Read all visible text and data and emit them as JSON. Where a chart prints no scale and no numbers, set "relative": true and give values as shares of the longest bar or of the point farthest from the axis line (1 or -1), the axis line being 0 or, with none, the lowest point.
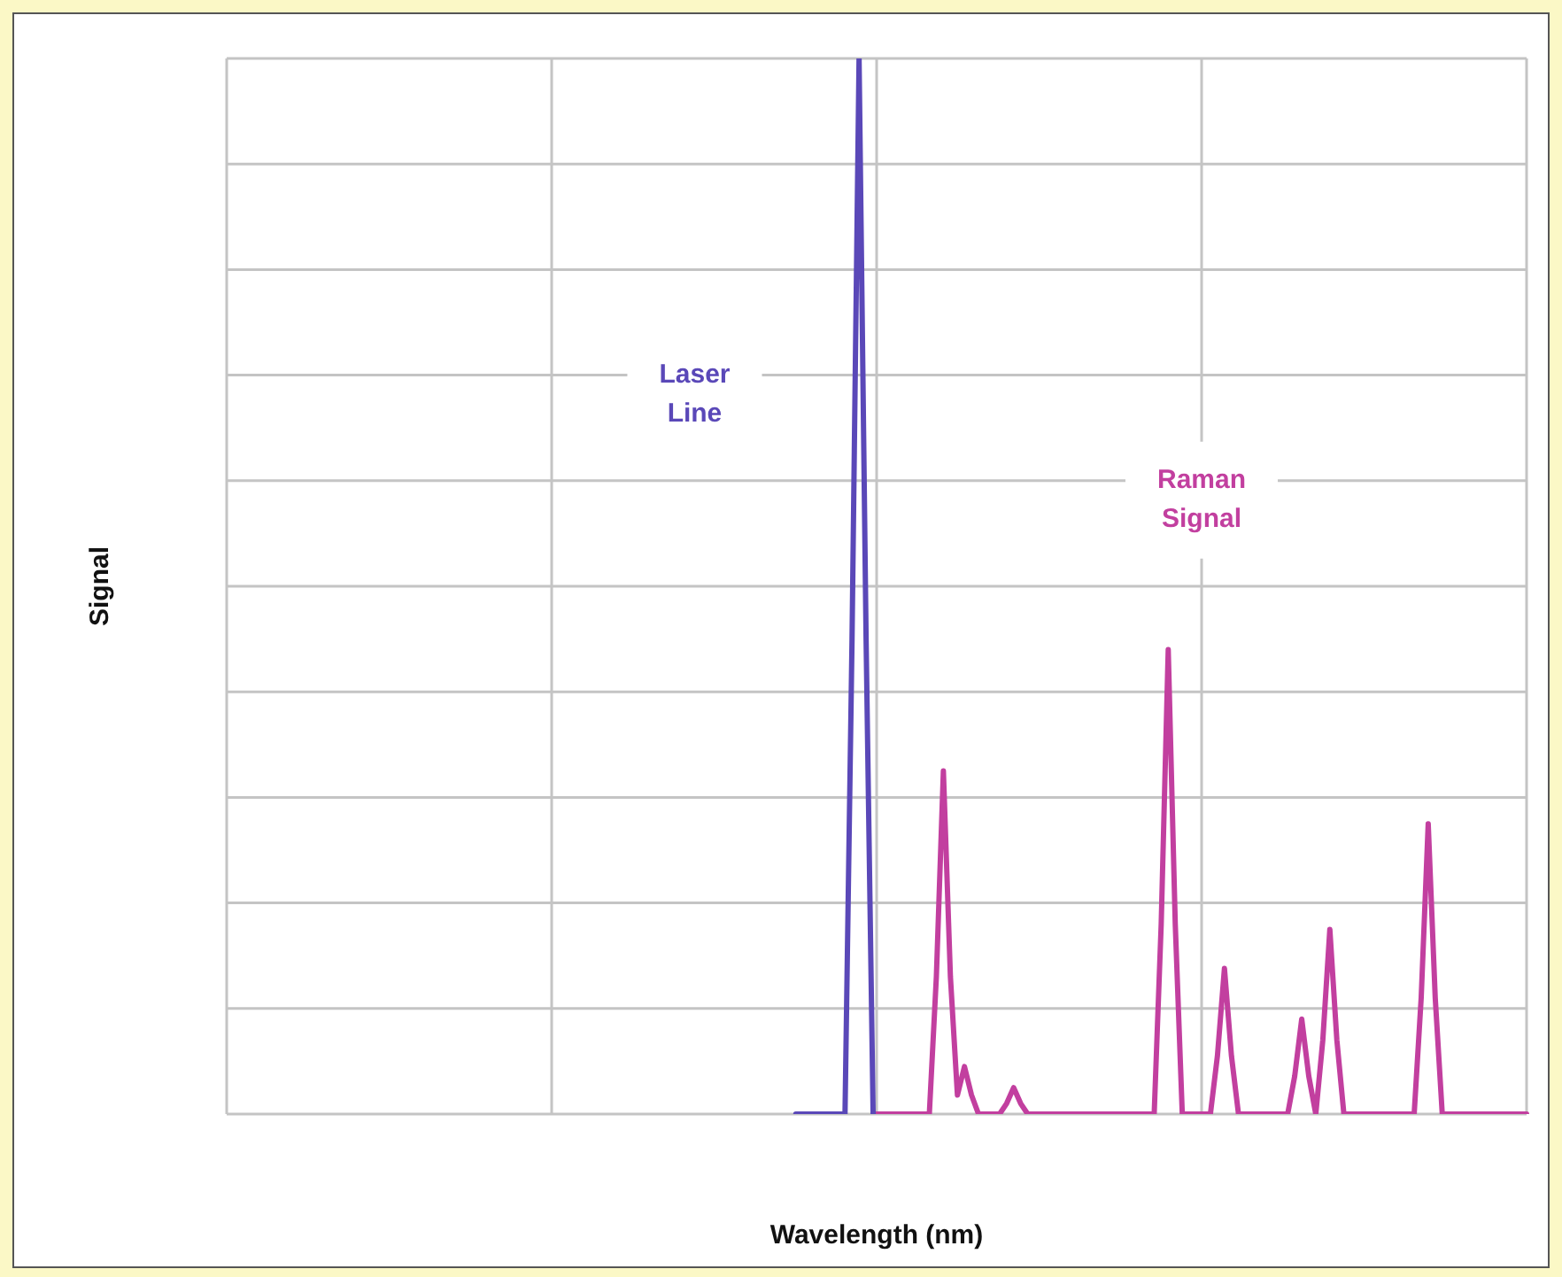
{
  "chart_data": {
    "type": "line",
    "xlabel": "Wavelength (nm)",
    "ylabel": "Signal",
    "relative": true,
    "grid": true,
    "legend": false,
    "tick_labels": false,
    "marker": "none",
    "line_style": "solid",
    "categories": [
      null,
      null,
      null,
      null,
      null,
      null,
      null,
      null,
      null,
      null,
      null,
      null,
      null,
      null,
      null,
      null,
      null,
      null,
      null,
      null,
      null,
      null,
      null,
      null,
      null,
      null,
      null,
      null,
      null,
      null,
      null,
      null,
      null,
      null,
      null,
      null,
      null,
      null,
      null,
      null,
      null,
      null,
      null,
      null,
      null,
      null,
      null,
      null,
      null,
      null,
      null,
      null,
      null,
      null,
      null,
      null,
      null,
      null,
      null,
      null,
      null,
      null,
      null,
      null,
      null,
      null,
      null,
      null,
      null,
      null,
      null,
      null,
      null,
      null,
      null,
      null,
      null,
      null,
      null,
      null,
      null,
      null,
      null,
      null,
      null,
      null,
      null,
      null,
      null,
      null,
      null,
      null,
      null,
      null,
      null,
      null,
      null,
      null,
      null,
      null,
      null,
      null,
      null,
      null,
      null,
      null,
      null,
      null,
      null,
      null,
      null,
      null,
      null,
      null,
      null,
      null,
      null,
      null,
      null,
      null,
      null,
      null,
      null,
      null,
      null,
      null,
      null,
      null,
      null,
      null,
      null,
      null,
      null,
      null,
      null,
      null,
      null,
      null,
      null,
      null,
      null,
      null,
      null,
      null,
      null,
      null,
      null,
      null,
      null,
      null,
      null,
      null,
      null,
      null,
      null,
      null,
      null,
      null,
      null,
      null,
      null,
      null,
      null,
      null,
      null,
      null,
      null,
      null,
      null,
      null,
      null,
      null,
      null,
      null,
      null,
      null,
      null,
      null,
      null,
      null,
      null,
      null,
      null,
      null,
      null,
      null
    ],
    "series": [
      {
        "name": "Laser Line",
        "color": "#5a48b8",
        "values": [
          null,
          null,
          null,
          null,
          null,
          null,
          null,
          null,
          null,
          null,
          null,
          null,
          null,
          null,
          null,
          null,
          null,
          null,
          null,
          null,
          null,
          null,
          null,
          null,
          null,
          null,
          null,
          null,
          null,
          null,
          null,
          null,
          null,
          null,
          null,
          null,
          null,
          null,
          null,
          null,
          null,
          null,
          null,
          null,
          null,
          null,
          null,
          null,
          null,
          null,
          null,
          null,
          null,
          null,
          null,
          null,
          null,
          null,
          null,
          null,
          null,
          null,
          null,
          null,
          null,
          null,
          null,
          null,
          null,
          null,
          null,
          null,
          null,
          null,
          null,
          null,
          null,
          null,
          null,
          null,
          null,
          0,
          0,
          0,
          0,
          0,
          0,
          0,
          0,
          0.45,
          1,
          0.45,
          0,
          null,
          null,
          null,
          null,
          null,
          null,
          null,
          null,
          null,
          null,
          null,
          null,
          null,
          null,
          null,
          null,
          null,
          null,
          null,
          null,
          null,
          null,
          null,
          null,
          null,
          null,
          null,
          null,
          null,
          null,
          null,
          null,
          null,
          null,
          null,
          null,
          null,
          null,
          null,
          null,
          null,
          null,
          null,
          null,
          null,
          null,
          null,
          null,
          null,
          null,
          null,
          null,
          null,
          null,
          null,
          null,
          null,
          null,
          null,
          null,
          null,
          null,
          null,
          null,
          null,
          null,
          null,
          null,
          null,
          null,
          null,
          null,
          null,
          null,
          null,
          null,
          null,
          null,
          null,
          null,
          null,
          null,
          null,
          null,
          null,
          null,
          null,
          null,
          null,
          null,
          null,
          null,
          null
        ]
      },
      {
        "name": "Raman Signal",
        "color": "#c23f9f",
        "values": [
          null,
          null,
          null,
          null,
          null,
          null,
          null,
          null,
          null,
          null,
          null,
          null,
          null,
          null,
          null,
          null,
          null,
          null,
          null,
          null,
          null,
          null,
          null,
          null,
          null,
          null,
          null,
          null,
          null,
          null,
          null,
          null,
          null,
          null,
          null,
          null,
          null,
          null,
          null,
          null,
          null,
          null,
          null,
          null,
          null,
          null,
          null,
          null,
          null,
          null,
          null,
          null,
          null,
          null,
          null,
          null,
          null,
          null,
          null,
          null,
          null,
          null,
          null,
          null,
          null,
          null,
          null,
          null,
          null,
          null,
          null,
          null,
          null,
          null,
          null,
          null,
          null,
          null,
          null,
          null,
          null,
          null,
          null,
          null,
          null,
          null,
          null,
          null,
          null,
          null,
          null,
          null,
          0,
          0,
          0,
          0,
          0,
          0,
          0,
          0,
          0,
          0.13,
          0.325,
          0.13,
          0.018,
          0.045,
          0.018,
          0,
          0,
          0,
          0,
          0.01,
          0.025,
          0.01,
          0,
          0,
          0,
          0,
          0,
          0,
          0,
          0,
          0,
          0,
          0,
          0,
          0,
          0,
          0,
          0,
          0,
          0,
          0,
          0.18,
          0.44,
          0.18,
          0,
          0,
          0,
          0,
          0,
          0.055,
          0.138,
          0.055,
          0,
          0,
          0,
          0,
          0,
          0,
          0,
          0,
          0.036,
          0.09,
          0.036,
          0,
          0.07,
          0.175,
          0.07,
          0,
          0,
          0,
          0,
          0,
          0,
          0,
          0,
          0,
          0,
          0,
          0.11,
          0.275,
          0.11,
          0,
          0,
          0,
          0,
          0,
          0,
          0,
          0,
          0,
          0,
          0,
          0,
          0
        ]
      }
    ]
  }
}
